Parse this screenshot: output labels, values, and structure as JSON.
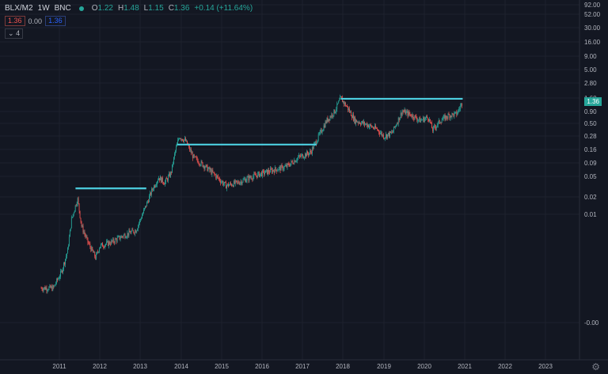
{
  "legend": {
    "symbol": "BLX/M2",
    "interval": "1W",
    "exchange": "BNC",
    "o_label": "O",
    "o": "1.22",
    "h_label": "H",
    "h": "1.48",
    "l_label": "L",
    "l": "1.15",
    "c_label": "C",
    "c": "1.36",
    "change": "+0.14 (+11.64%)"
  },
  "toolbar": {
    "price_red": "1.36",
    "price_mid": "0.00",
    "price_blue": "1.36",
    "collapse_label": "4"
  },
  "price_tag": "1.36",
  "colors": {
    "background": "#131722",
    "up": "#26a69a",
    "down": "#ef5350",
    "level_line": "#4dd0e1"
  },
  "chart_data": {
    "type": "candlestick",
    "y_scale": "log",
    "y_ticks": [
      "92.00",
      "52.00",
      "30.00",
      "16.00",
      "9.00",
      "5.00",
      "2.80",
      "1.60",
      "0.90",
      "0.50",
      "0.28",
      "0.16",
      "0.09",
      "0.05",
      "0.02",
      "0.01",
      "-0.00"
    ],
    "x_ticks": [
      "2011",
      "2012",
      "2013",
      "2014",
      "2015",
      "2016",
      "2017",
      "2018",
      "2019",
      "2020",
      "2021",
      "2022",
      "2023"
    ],
    "price_path": [
      [
        2010.55,
        0.0004
      ],
      [
        2010.85,
        0.0004
      ],
      [
        2011.05,
        0.0008
      ],
      [
        2011.2,
        0.002
      ],
      [
        2011.3,
        0.008
      ],
      [
        2011.45,
        0.02
      ],
      [
        2011.55,
        0.006
      ],
      [
        2011.7,
        0.003
      ],
      [
        2011.9,
        0.0015
      ],
      [
        2012.0,
        0.0025
      ],
      [
        2012.3,
        0.003
      ],
      [
        2012.6,
        0.004
      ],
      [
        2012.9,
        0.005
      ],
      [
        2013.1,
        0.012
      ],
      [
        2013.3,
        0.03
      ],
      [
        2013.45,
        0.05
      ],
      [
        2013.6,
        0.04
      ],
      [
        2013.75,
        0.06
      ],
      [
        2013.85,
        0.15
      ],
      [
        2013.95,
        0.3
      ],
      [
        2014.1,
        0.25
      ],
      [
        2014.3,
        0.12
      ],
      [
        2014.6,
        0.08
      ],
      [
        2014.9,
        0.05
      ],
      [
        2015.1,
        0.035
      ],
      [
        2015.4,
        0.04
      ],
      [
        2015.7,
        0.05
      ],
      [
        2016.0,
        0.06
      ],
      [
        2016.3,
        0.07
      ],
      [
        2016.6,
        0.08
      ],
      [
        2016.9,
        0.12
      ],
      [
        2017.2,
        0.15
      ],
      [
        2017.4,
        0.3
      ],
      [
        2017.6,
        0.6
      ],
      [
        2017.8,
        0.9
      ],
      [
        2017.95,
        1.6
      ],
      [
        2018.1,
        1.1
      ],
      [
        2018.3,
        0.6
      ],
      [
        2018.6,
        0.5
      ],
      [
        2018.85,
        0.4
      ],
      [
        2019.0,
        0.3
      ],
      [
        2019.2,
        0.35
      ],
      [
        2019.45,
        0.9
      ],
      [
        2019.7,
        0.75
      ],
      [
        2019.9,
        0.6
      ],
      [
        2020.1,
        0.7
      ],
      [
        2020.2,
        0.4
      ],
      [
        2020.4,
        0.6
      ],
      [
        2020.6,
        0.75
      ],
      [
        2020.8,
        0.8
      ],
      [
        2020.95,
        1.36
      ]
    ],
    "levels": [
      {
        "from": 2011.4,
        "to": 2013.15,
        "value": 0.031
      },
      {
        "from": 2013.9,
        "to": 2017.35,
        "value": 0.21
      },
      {
        "from": 2017.95,
        "to": 2020.95,
        "value": 1.55
      }
    ]
  }
}
